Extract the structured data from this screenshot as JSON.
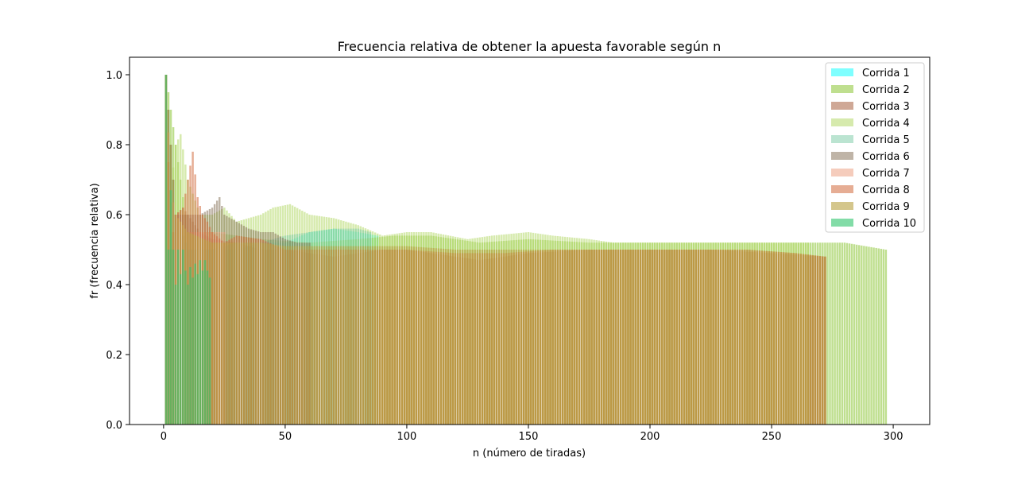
{
  "chart_data": {
    "type": "bar",
    "title": "Frecuencia relativa de obtener la apuesta favorable según n",
    "xlabel": "n (número de tiradas)",
    "ylabel": "fr (frecuencia relativa)",
    "xlim": [
      -14,
      315
    ],
    "ylim": [
      0,
      1.05
    ],
    "x_ticks": [
      0,
      50,
      100,
      150,
      200,
      250,
      300
    ],
    "y_ticks": [
      0.0,
      0.2,
      0.4,
      0.6,
      0.8,
      1.0
    ],
    "x_tick_labels": [
      "0",
      "50",
      "100",
      "150",
      "200",
      "250",
      "300"
    ],
    "y_tick_labels": [
      "0.0",
      "0.2",
      "0.4",
      "0.6",
      "0.8",
      "1.0"
    ],
    "legend_position": "upper right",
    "grid": false,
    "series": [
      {
        "name": "Corrida 1",
        "color": "#00ffff",
        "alpha": 0.5,
        "points": [
          [
            1,
            1.0
          ],
          [
            5,
            0.6
          ],
          [
            10,
            0.5
          ],
          [
            20,
            0.5
          ],
          [
            30,
            0.5
          ],
          [
            40,
            0.52
          ],
          [
            50,
            0.52
          ],
          [
            60,
            0.55
          ],
          [
            70,
            0.56
          ],
          [
            80,
            0.55
          ],
          [
            88,
            0.54
          ]
        ]
      },
      {
        "name": "Corrida 2",
        "color": "#7fbf1f",
        "alpha": 0.5,
        "points": [
          [
            1,
            1.0
          ],
          [
            10,
            0.55
          ],
          [
            20,
            0.55
          ],
          [
            40,
            0.53
          ],
          [
            60,
            0.52
          ],
          [
            80,
            0.53
          ],
          [
            95,
            0.54
          ],
          [
            110,
            0.54
          ],
          [
            130,
            0.52
          ],
          [
            150,
            0.53
          ],
          [
            175,
            0.52
          ],
          [
            200,
            0.52
          ],
          [
            225,
            0.52
          ],
          [
            250,
            0.52
          ],
          [
            270,
            0.52
          ],
          [
            280,
            0.52
          ],
          [
            297,
            0.5
          ]
        ]
      },
      {
        "name": "Corrida 3",
        "color": "#a0522d",
        "alpha": 0.5,
        "points": [
          [
            1,
            1.0
          ],
          [
            3,
            0.67
          ],
          [
            5,
            0.6
          ],
          [
            8,
            0.62
          ],
          [
            10,
            0.6
          ],
          [
            15,
            0.55
          ],
          [
            20,
            0.53
          ],
          [
            30,
            0.52
          ],
          [
            40,
            0.5
          ],
          [
            50,
            0.5
          ],
          [
            70,
            0.48
          ],
          [
            90,
            0.5
          ],
          [
            100,
            0.5
          ],
          [
            130,
            0.47
          ],
          [
            150,
            0.49
          ],
          [
            175,
            0.5
          ],
          [
            200,
            0.5
          ],
          [
            225,
            0.5
          ],
          [
            250,
            0.49
          ],
          [
            272,
            0.48
          ]
        ]
      },
      {
        "name": "Corrida 4",
        "color": "#b5d96a",
        "alpha": 0.55,
        "points": [
          [
            1,
            1.0
          ],
          [
            3,
            0.67
          ],
          [
            5,
            0.8
          ],
          [
            7,
            0.83
          ],
          [
            10,
            0.7
          ],
          [
            15,
            0.6
          ],
          [
            20,
            0.6
          ],
          [
            25,
            0.62
          ],
          [
            30,
            0.58
          ],
          [
            40,
            0.6
          ],
          [
            45,
            0.62
          ],
          [
            52,
            0.63
          ],
          [
            60,
            0.6
          ],
          [
            70,
            0.59
          ],
          [
            80,
            0.57
          ],
          [
            90,
            0.54
          ],
          [
            100,
            0.55
          ],
          [
            110,
            0.55
          ],
          [
            125,
            0.53
          ],
          [
            135,
            0.54
          ],
          [
            150,
            0.55
          ],
          [
            160,
            0.54
          ],
          [
            175,
            0.53
          ],
          [
            185,
            0.52
          ],
          [
            200,
            0.52
          ],
          [
            225,
            0.52
          ],
          [
            250,
            0.52
          ],
          [
            265,
            0.52
          ]
        ]
      },
      {
        "name": "Corrida 5",
        "color": "#77c9a3",
        "alpha": 0.5,
        "points": [
          [
            1,
            1.0
          ],
          [
            5,
            0.6
          ],
          [
            10,
            0.5
          ],
          [
            20,
            0.5
          ],
          [
            30,
            0.52
          ],
          [
            40,
            0.52
          ],
          [
            50,
            0.54
          ],
          [
            60,
            0.55
          ],
          [
            70,
            0.56
          ],
          [
            80,
            0.56
          ],
          [
            85,
            0.55
          ]
        ]
      },
      {
        "name": "Corrida 6",
        "color": "#7f6a50",
        "alpha": 0.5,
        "points": [
          [
            1,
            1.0
          ],
          [
            5,
            0.6
          ],
          [
            10,
            0.6
          ],
          [
            15,
            0.6
          ],
          [
            20,
            0.62
          ],
          [
            23,
            0.65
          ],
          [
            25,
            0.6
          ],
          [
            30,
            0.58
          ],
          [
            35,
            0.56
          ],
          [
            40,
            0.55
          ],
          [
            45,
            0.55
          ],
          [
            50,
            0.53
          ],
          [
            55,
            0.52
          ],
          [
            60,
            0.52
          ]
        ]
      },
      {
        "name": "Corrida 7",
        "color": "#eb9a7a",
        "alpha": 0.5,
        "points": [
          [
            1,
            1.0
          ],
          [
            3,
            0.67
          ],
          [
            5,
            0.6
          ],
          [
            10,
            0.55
          ],
          [
            15,
            0.55
          ],
          [
            20,
            0.55
          ],
          [
            25,
            0.55
          ]
        ]
      },
      {
        "name": "Corrida 8",
        "color": "#d2693c",
        "alpha": 0.55,
        "points": [
          [
            1,
            1.0
          ],
          [
            3,
            0.5
          ],
          [
            5,
            0.6
          ],
          [
            8,
            0.62
          ],
          [
            10,
            0.7
          ],
          [
            12,
            0.78
          ],
          [
            14,
            0.65
          ],
          [
            16,
            0.6
          ],
          [
            18,
            0.58
          ],
          [
            20,
            0.55
          ],
          [
            25,
            0.52
          ],
          [
            30,
            0.54
          ],
          [
            40,
            0.53
          ],
          [
            50,
            0.5
          ],
          [
            60,
            0.5
          ],
          [
            80,
            0.5
          ],
          [
            100,
            0.5
          ],
          [
            120,
            0.49
          ],
          [
            140,
            0.49
          ],
          [
            160,
            0.5
          ],
          [
            180,
            0.5
          ],
          [
            200,
            0.5
          ],
          [
            220,
            0.5
          ],
          [
            240,
            0.5
          ],
          [
            260,
            0.49
          ],
          [
            272,
            0.48
          ]
        ]
      },
      {
        "name": "Corrida 9",
        "color": "#b8a040",
        "alpha": 0.6,
        "points": [
          [
            1,
            1.0
          ],
          [
            5,
            0.6
          ],
          [
            10,
            0.55
          ],
          [
            20,
            0.52
          ],
          [
            30,
            0.52
          ],
          [
            40,
            0.52
          ],
          [
            50,
            0.51
          ],
          [
            60,
            0.51
          ],
          [
            80,
            0.51
          ],
          [
            100,
            0.51
          ],
          [
            120,
            0.5
          ],
          [
            140,
            0.5
          ],
          [
            160,
            0.5
          ],
          [
            180,
            0.5
          ],
          [
            200,
            0.5
          ],
          [
            220,
            0.5
          ],
          [
            240,
            0.5
          ],
          [
            260,
            0.49
          ],
          [
            272,
            0.48
          ]
        ]
      },
      {
        "name": "Corrida 10",
        "color": "#2ec46c",
        "alpha": 0.6,
        "points": [
          [
            1,
            1.0
          ],
          [
            2,
            0.5
          ],
          [
            3,
            0.67
          ],
          [
            4,
            0.5
          ],
          [
            5,
            0.4
          ],
          [
            6,
            0.5
          ],
          [
            7,
            0.43
          ],
          [
            8,
            0.5
          ],
          [
            9,
            0.44
          ],
          [
            10,
            0.4
          ],
          [
            11,
            0.45
          ],
          [
            12,
            0.42
          ],
          [
            13,
            0.46
          ],
          [
            14,
            0.43
          ],
          [
            15,
            0.47
          ],
          [
            16,
            0.44
          ],
          [
            17,
            0.47
          ],
          [
            18,
            0.44
          ],
          [
            19,
            0.42
          ]
        ]
      }
    ]
  }
}
